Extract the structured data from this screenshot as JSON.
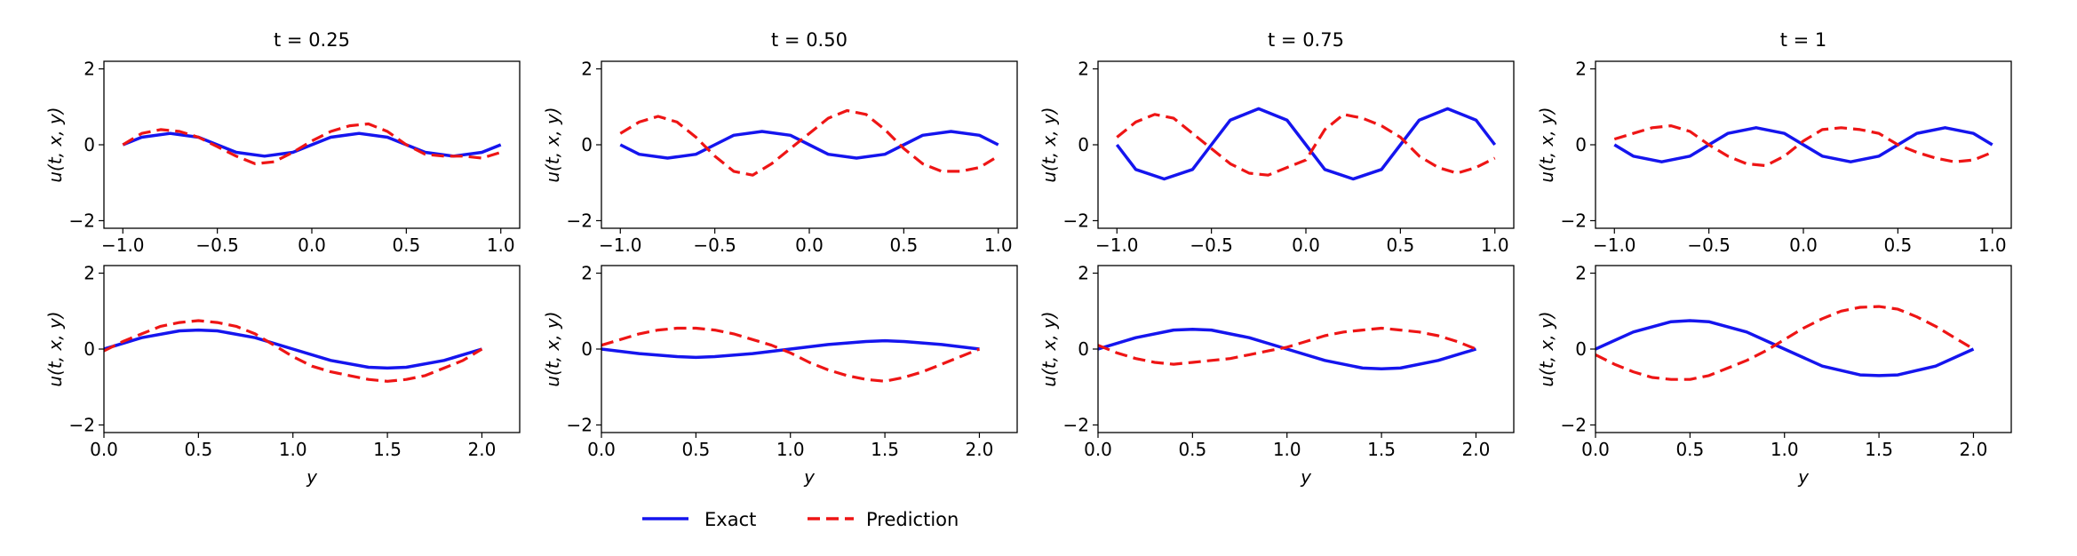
{
  "colors": {
    "exact": "#1515ee",
    "prediction": "#ee1515"
  },
  "legend": {
    "exact_label": "Exact",
    "prediction_label": "Prediction"
  },
  "chart_data": [
    {
      "type": "line",
      "title": "t = 0.25",
      "xlabel": "",
      "ylabel": "u(t, x, y)",
      "xlim": [
        -1.1,
        1.1
      ],
      "ylim": [
        -2.2,
        2.2
      ],
      "xticks": [
        "-1.0",
        "-0.5",
        "0.0",
        "0.5",
        "1.0"
      ],
      "yticks": [
        "-2",
        "0",
        "2"
      ],
      "series": [
        {
          "name": "Exact",
          "x": [
            -1.0,
            -0.9,
            -0.75,
            -0.6,
            -0.5,
            -0.4,
            -0.25,
            -0.1,
            0.0,
            0.1,
            0.25,
            0.4,
            0.5,
            0.6,
            0.75,
            0.9,
            1.0
          ],
          "y": [
            0.0,
            0.2,
            0.3,
            0.2,
            0.0,
            -0.2,
            -0.3,
            -0.2,
            0.0,
            0.2,
            0.3,
            0.2,
            0.0,
            -0.2,
            -0.3,
            -0.2,
            0.0
          ]
        },
        {
          "name": "Prediction",
          "x": [
            -1.0,
            -0.9,
            -0.8,
            -0.7,
            -0.6,
            -0.5,
            -0.4,
            -0.3,
            -0.2,
            -0.1,
            0.0,
            0.1,
            0.2,
            0.3,
            0.4,
            0.5,
            0.6,
            0.7,
            0.8,
            0.9,
            1.0
          ],
          "y": [
            0.0,
            0.3,
            0.4,
            0.35,
            0.2,
            -0.05,
            -0.3,
            -0.5,
            -0.45,
            -0.2,
            0.1,
            0.35,
            0.5,
            0.55,
            0.35,
            0.0,
            -0.25,
            -0.3,
            -0.3,
            -0.35,
            -0.2
          ]
        }
      ]
    },
    {
      "type": "line",
      "title": "t = 0.50",
      "xlabel": "",
      "ylabel": "u(t, x, y)",
      "xlim": [
        -1.1,
        1.1
      ],
      "ylim": [
        -2.2,
        2.2
      ],
      "xticks": [
        "-1.0",
        "-0.5",
        "0.0",
        "0.5",
        "1.0"
      ],
      "yticks": [
        "-2",
        "0",
        "2"
      ],
      "series": [
        {
          "name": "Exact",
          "x": [
            -1.0,
            -0.9,
            -0.75,
            -0.6,
            -0.5,
            -0.4,
            -0.25,
            -0.1,
            0.0,
            0.1,
            0.25,
            0.4,
            0.5,
            0.6,
            0.75,
            0.9,
            1.0
          ],
          "y": [
            0.0,
            -0.25,
            -0.35,
            -0.25,
            0.0,
            0.25,
            0.35,
            0.25,
            0.0,
            -0.25,
            -0.35,
            -0.25,
            0.0,
            0.25,
            0.35,
            0.25,
            0.0
          ]
        },
        {
          "name": "Prediction",
          "x": [
            -1.0,
            -0.9,
            -0.8,
            -0.7,
            -0.6,
            -0.5,
            -0.4,
            -0.3,
            -0.2,
            -0.1,
            0.0,
            0.1,
            0.2,
            0.3,
            0.4,
            0.5,
            0.6,
            0.7,
            0.8,
            0.9,
            1.0
          ],
          "y": [
            0.3,
            0.6,
            0.75,
            0.6,
            0.2,
            -0.3,
            -0.7,
            -0.8,
            -0.5,
            -0.1,
            0.3,
            0.7,
            0.9,
            0.8,
            0.4,
            -0.1,
            -0.5,
            -0.7,
            -0.7,
            -0.6,
            -0.3
          ]
        }
      ]
    },
    {
      "type": "line",
      "title": "t = 0.75",
      "xlabel": "",
      "ylabel": "u(t, x, y)",
      "xlim": [
        -1.1,
        1.1
      ],
      "ylim": [
        -2.2,
        2.2
      ],
      "xticks": [
        "-1.0",
        "-0.5",
        "0.0",
        "0.5",
        "1.0"
      ],
      "yticks": [
        "-2",
        "0",
        "2"
      ],
      "series": [
        {
          "name": "Exact",
          "x": [
            -1.0,
            -0.9,
            -0.75,
            -0.6,
            -0.5,
            -0.4,
            -0.25,
            -0.1,
            0.0,
            0.1,
            0.25,
            0.4,
            0.5,
            0.6,
            0.75,
            0.9,
            1.0
          ],
          "y": [
            0.0,
            -0.65,
            -0.9,
            -0.65,
            0.0,
            0.65,
            0.95,
            0.65,
            0.0,
            -0.65,
            -0.9,
            -0.65,
            0.0,
            0.65,
            0.95,
            0.65,
            0.0
          ]
        },
        {
          "name": "Prediction",
          "x": [
            -1.0,
            -0.9,
            -0.8,
            -0.7,
            -0.6,
            -0.5,
            -0.4,
            -0.3,
            -0.2,
            -0.1,
            0.0,
            0.1,
            0.2,
            0.3,
            0.4,
            0.5,
            0.6,
            0.7,
            0.8,
            0.9,
            1.0
          ],
          "y": [
            0.2,
            0.6,
            0.8,
            0.7,
            0.3,
            -0.1,
            -0.5,
            -0.75,
            -0.8,
            -0.6,
            -0.4,
            0.4,
            0.8,
            0.7,
            0.5,
            0.2,
            -0.3,
            -0.6,
            -0.75,
            -0.6,
            -0.35
          ]
        }
      ]
    },
    {
      "type": "line",
      "title": "t = 1",
      "xlabel": "",
      "ylabel": "u(t, x, y)",
      "xlim": [
        -1.1,
        1.1
      ],
      "ylim": [
        -2.2,
        2.2
      ],
      "xticks": [
        "-1.0",
        "-0.5",
        "0.0",
        "0.5",
        "1.0"
      ],
      "yticks": [
        "-2",
        "0",
        "2"
      ],
      "series": [
        {
          "name": "Exact",
          "x": [
            -1.0,
            -0.9,
            -0.75,
            -0.6,
            -0.5,
            -0.4,
            -0.25,
            -0.1,
            0.0,
            0.1,
            0.25,
            0.4,
            0.5,
            0.6,
            0.75,
            0.9,
            1.0
          ],
          "y": [
            0.0,
            -0.3,
            -0.45,
            -0.3,
            0.0,
            0.3,
            0.45,
            0.3,
            0.0,
            -0.3,
            -0.45,
            -0.3,
            0.0,
            0.3,
            0.45,
            0.3,
            0.0
          ]
        },
        {
          "name": "Prediction",
          "x": [
            -1.0,
            -0.9,
            -0.8,
            -0.7,
            -0.6,
            -0.5,
            -0.4,
            -0.3,
            -0.2,
            -0.1,
            0.0,
            0.1,
            0.2,
            0.3,
            0.4,
            0.5,
            0.6,
            0.7,
            0.8,
            0.9,
            1.0
          ],
          "y": [
            0.15,
            0.3,
            0.45,
            0.5,
            0.35,
            0.0,
            -0.3,
            -0.5,
            -0.55,
            -0.3,
            0.1,
            0.4,
            0.45,
            0.4,
            0.3,
            0.0,
            -0.2,
            -0.35,
            -0.45,
            -0.4,
            -0.2
          ]
        }
      ]
    },
    {
      "type": "line",
      "title": "",
      "xlabel": "y",
      "ylabel": "u(t, x, y)",
      "xlim": [
        0.0,
        2.2
      ],
      "ylim": [
        -2.2,
        2.2
      ],
      "xticks": [
        "0.0",
        "0.5",
        "1.0",
        "1.5",
        "2.0"
      ],
      "yticks": [
        "-2",
        "0",
        "2"
      ],
      "series": [
        {
          "name": "Exact",
          "x": [
            0.0,
            0.2,
            0.4,
            0.5,
            0.6,
            0.8,
            1.0,
            1.2,
            1.4,
            1.5,
            1.6,
            1.8,
            2.0
          ],
          "y": [
            0.0,
            0.3,
            0.48,
            0.5,
            0.48,
            0.3,
            0.0,
            -0.3,
            -0.48,
            -0.5,
            -0.48,
            -0.3,
            0.0
          ]
        },
        {
          "name": "Prediction",
          "x": [
            0.0,
            0.1,
            0.2,
            0.3,
            0.4,
            0.5,
            0.6,
            0.7,
            0.8,
            0.9,
            1.0,
            1.1,
            1.2,
            1.3,
            1.4,
            1.5,
            1.6,
            1.7,
            1.8,
            1.9,
            2.0
          ],
          "y": [
            -0.05,
            0.2,
            0.4,
            0.6,
            0.7,
            0.75,
            0.7,
            0.6,
            0.4,
            0.1,
            -0.2,
            -0.45,
            -0.6,
            -0.7,
            -0.8,
            -0.85,
            -0.8,
            -0.7,
            -0.5,
            -0.3,
            0.0
          ]
        }
      ]
    },
    {
      "type": "line",
      "title": "",
      "xlabel": "y",
      "ylabel": "u(t, x, y)",
      "xlim": [
        0.0,
        2.2
      ],
      "ylim": [
        -2.2,
        2.2
      ],
      "xticks": [
        "0.0",
        "0.5",
        "1.0",
        "1.5",
        "2.0"
      ],
      "yticks": [
        "-2",
        "0",
        "2"
      ],
      "series": [
        {
          "name": "Exact",
          "x": [
            0.0,
            0.2,
            0.4,
            0.5,
            0.6,
            0.8,
            1.0,
            1.2,
            1.4,
            1.5,
            1.6,
            1.8,
            2.0
          ],
          "y": [
            0.0,
            -0.12,
            -0.2,
            -0.22,
            -0.2,
            -0.12,
            0.0,
            0.12,
            0.2,
            0.22,
            0.2,
            0.12,
            0.0
          ]
        },
        {
          "name": "Prediction",
          "x": [
            0.0,
            0.1,
            0.2,
            0.3,
            0.4,
            0.5,
            0.6,
            0.7,
            0.8,
            0.9,
            1.0,
            1.1,
            1.2,
            1.3,
            1.4,
            1.5,
            1.6,
            1.7,
            1.8,
            1.9,
            2.0
          ],
          "y": [
            0.1,
            0.25,
            0.4,
            0.5,
            0.55,
            0.55,
            0.5,
            0.4,
            0.25,
            0.1,
            -0.1,
            -0.35,
            -0.55,
            -0.7,
            -0.8,
            -0.85,
            -0.75,
            -0.6,
            -0.4,
            -0.2,
            0.0
          ]
        }
      ]
    },
    {
      "type": "line",
      "title": "",
      "xlabel": "y",
      "ylabel": "u(t, x, y)",
      "xlim": [
        0.0,
        2.2
      ],
      "ylim": [
        -2.2,
        2.2
      ],
      "xticks": [
        "0.0",
        "0.5",
        "1.0",
        "1.5",
        "2.0"
      ],
      "yticks": [
        "-2",
        "0",
        "2"
      ],
      "series": [
        {
          "name": "Exact",
          "x": [
            0.0,
            0.2,
            0.4,
            0.5,
            0.6,
            0.8,
            1.0,
            1.2,
            1.4,
            1.5,
            1.6,
            1.8,
            2.0
          ],
          "y": [
            0.0,
            0.3,
            0.5,
            0.52,
            0.5,
            0.3,
            0.0,
            -0.3,
            -0.5,
            -0.52,
            -0.5,
            -0.3,
            0.0
          ]
        },
        {
          "name": "Prediction",
          "x": [
            0.0,
            0.1,
            0.2,
            0.3,
            0.4,
            0.5,
            0.6,
            0.7,
            0.8,
            0.9,
            1.0,
            1.1,
            1.2,
            1.3,
            1.4,
            1.5,
            1.6,
            1.7,
            1.8,
            1.9,
            2.0
          ],
          "y": [
            0.1,
            -0.1,
            -0.25,
            -0.35,
            -0.4,
            -0.35,
            -0.3,
            -0.25,
            -0.15,
            -0.05,
            0.05,
            0.2,
            0.35,
            0.45,
            0.5,
            0.55,
            0.5,
            0.45,
            0.35,
            0.2,
            0.0
          ]
        }
      ]
    },
    {
      "type": "line",
      "title": "",
      "xlabel": "y",
      "ylabel": "u(t, x, y)",
      "xlim": [
        0.0,
        2.2
      ],
      "ylim": [
        -2.2,
        2.2
      ],
      "xticks": [
        "0.0",
        "0.5",
        "1.0",
        "1.5",
        "2.0"
      ],
      "yticks": [
        "-2",
        "0",
        "2"
      ],
      "series": [
        {
          "name": "Exact",
          "x": [
            0.0,
            0.2,
            0.4,
            0.5,
            0.6,
            0.8,
            1.0,
            1.2,
            1.4,
            1.5,
            1.6,
            1.8,
            2.0
          ],
          "y": [
            0.0,
            0.45,
            0.72,
            0.75,
            0.72,
            0.45,
            0.0,
            -0.45,
            -0.68,
            -0.7,
            -0.68,
            -0.45,
            0.0
          ]
        },
        {
          "name": "Prediction",
          "x": [
            0.0,
            0.1,
            0.2,
            0.3,
            0.4,
            0.5,
            0.6,
            0.7,
            0.8,
            0.9,
            1.0,
            1.1,
            1.2,
            1.3,
            1.4,
            1.5,
            1.6,
            1.7,
            1.8,
            1.9,
            2.0
          ],
          "y": [
            -0.15,
            -0.4,
            -0.6,
            -0.75,
            -0.8,
            -0.8,
            -0.7,
            -0.5,
            -0.3,
            -0.05,
            0.25,
            0.55,
            0.8,
            1.0,
            1.1,
            1.12,
            1.05,
            0.85,
            0.6,
            0.3,
            0.0
          ]
        }
      ]
    }
  ]
}
